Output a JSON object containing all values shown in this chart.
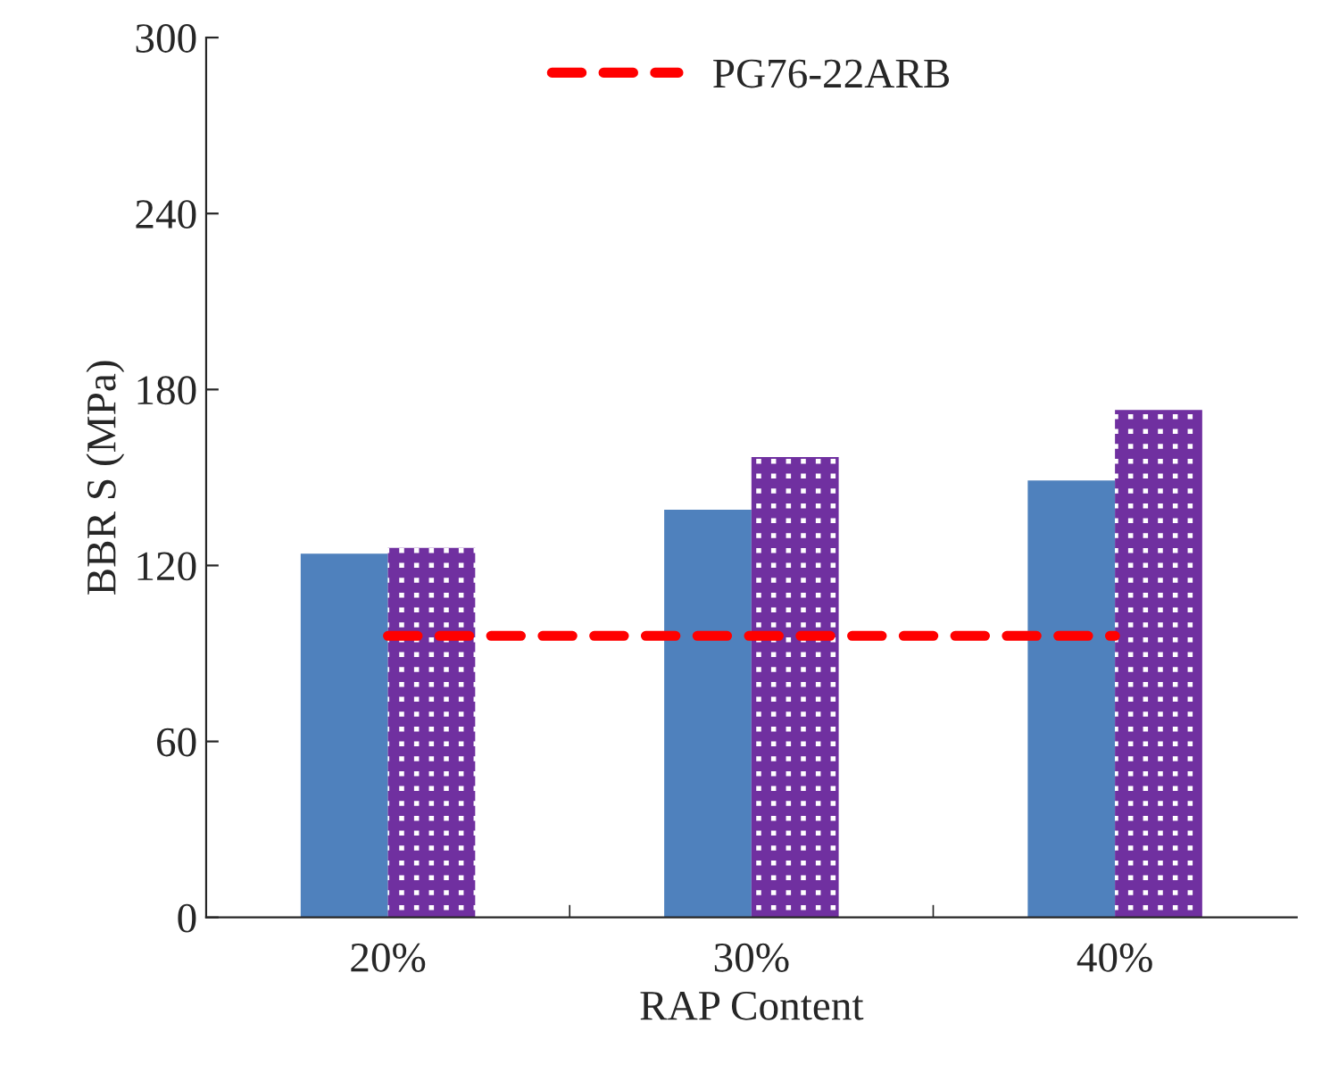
{
  "chart_data": {
    "type": "bar",
    "xlabel": "RAP Content",
    "ylabel": "BBR S (MPa)",
    "categories": [
      "20%",
      "30%",
      "40%"
    ],
    "series": [
      {
        "color": "#4f81bd",
        "values": [
          124,
          139,
          149
        ]
      },
      {
        "color": "#7030a0",
        "values": [
          126,
          157,
          173
        ]
      },
      {
        "type": "line",
        "name": "PG76-22ARB",
        "color": "#ff0000",
        "line_style": "dashed",
        "values": [
          96,
          96,
          96
        ]
      }
    ],
    "ylim": [
      0,
      300
    ],
    "yticks": [
      0,
      60,
      120,
      180,
      240,
      300
    ],
    "grid": false,
    "legend": "top"
  }
}
